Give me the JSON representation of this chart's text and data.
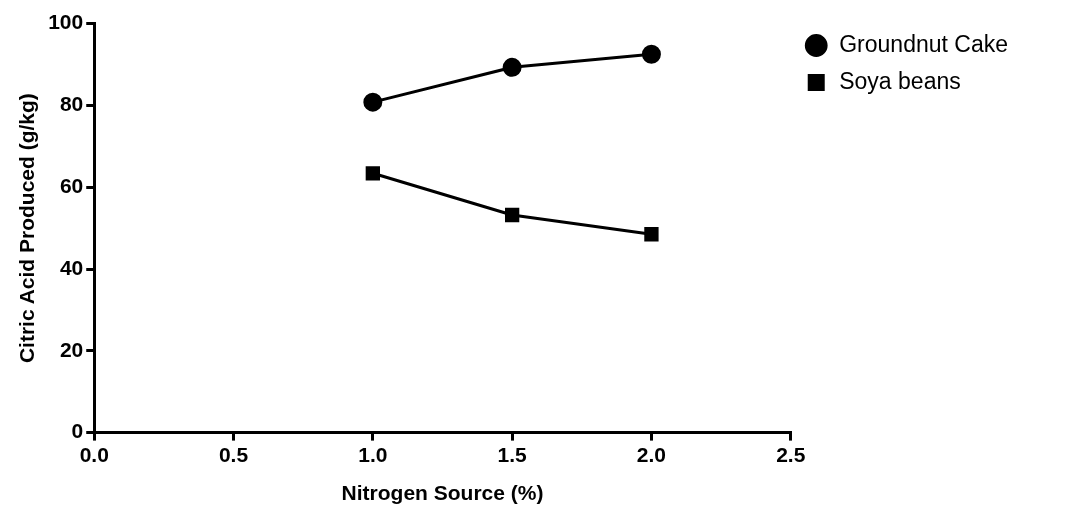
{
  "chart_data": {
    "type": "line",
    "xlabel": "Nitrogen Source (%)",
    "ylabel": "Citric Acid Produced (g/kg)",
    "xlim": [
      0,
      2.5
    ],
    "xticks": [
      {
        "value": 0,
        "label": "0.0"
      },
      {
        "value": 0.5,
        "label": "0.5"
      },
      {
        "value": 1,
        "label": "1.0"
      },
      {
        "value": 1.5,
        "label": "1.5"
      },
      {
        "value": 2,
        "label": "2.0"
      },
      {
        "value": 2.5,
        "label": "2.5"
      }
    ],
    "ylim": [
      0,
      100
    ],
    "yticks": [
      0,
      20,
      40,
      60,
      80,
      100
    ],
    "grid": false,
    "legend": "top right",
    "line_style": "solid",
    "x": [
      1,
      1.5,
      2
    ],
    "series": [
      {
        "name": "Groundnut Cake",
        "color": "#000000",
        "marker": "circle",
        "values": [
          80.8,
          89.3,
          92.5
        ]
      },
      {
        "name": "Soya beans",
        "color": "#000000",
        "marker": "square",
        "values": [
          63.4,
          53.2,
          48.5
        ]
      }
    ]
  }
}
